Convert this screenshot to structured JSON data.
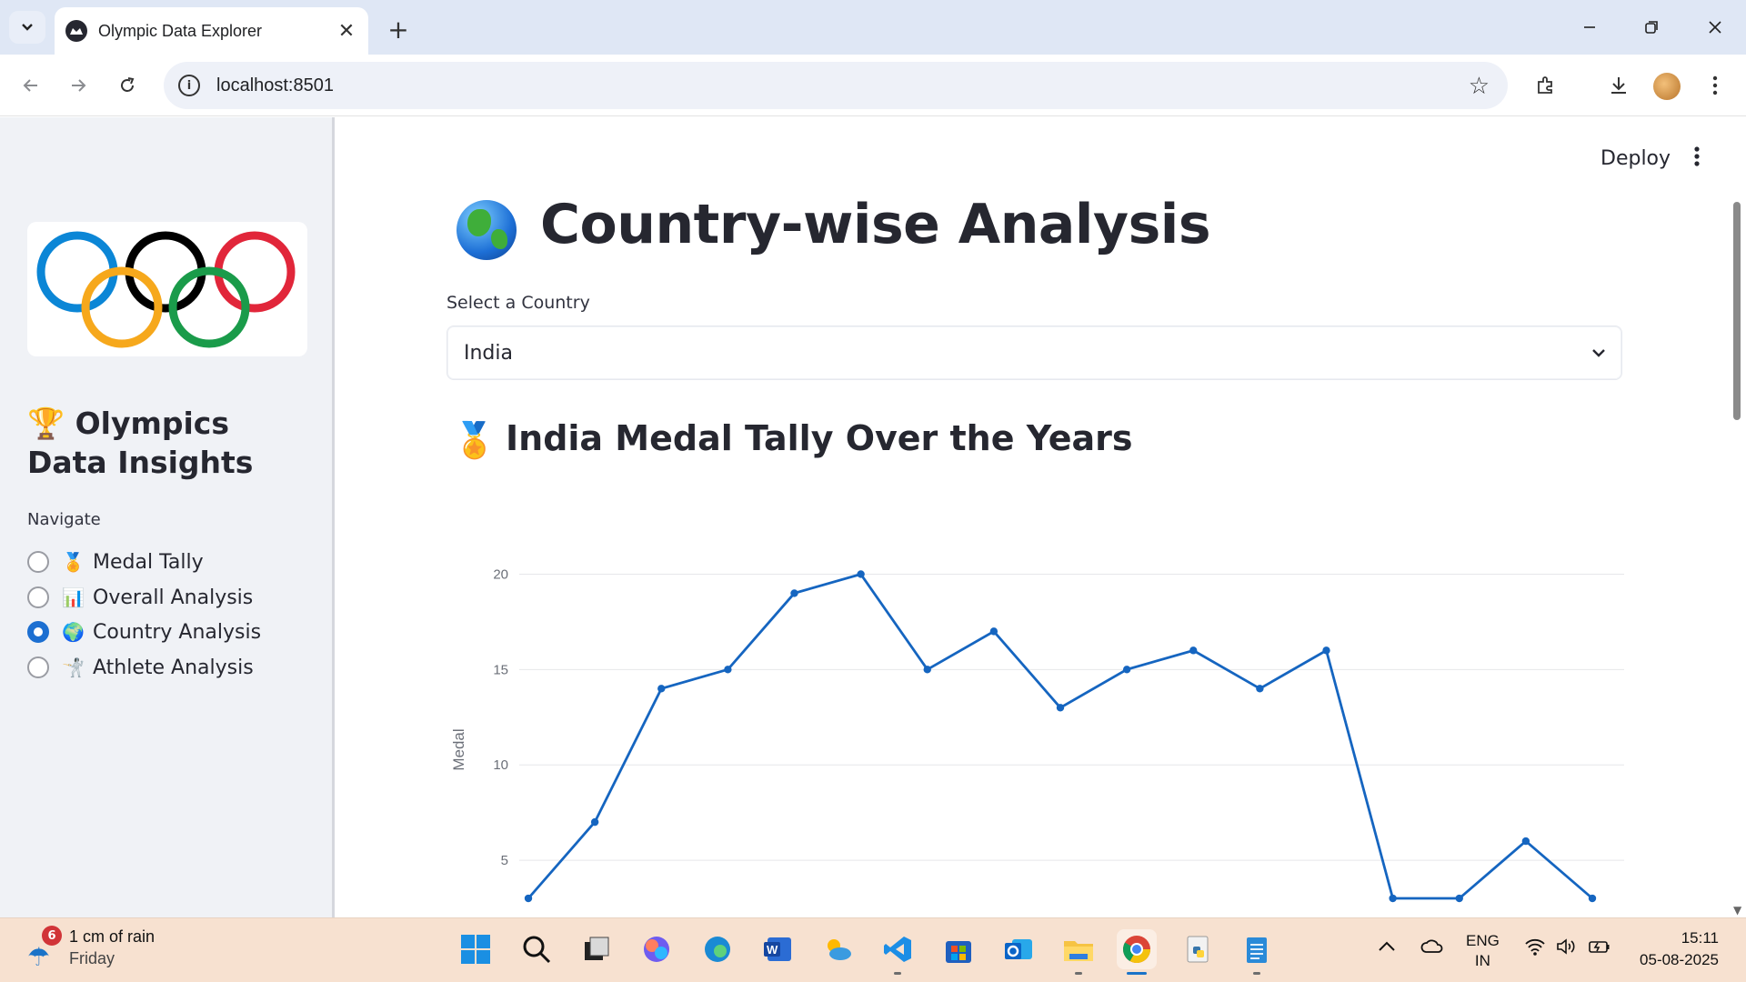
{
  "browser": {
    "tab_title": "Olympic Data Explorer",
    "url": "localhost:8501"
  },
  "sidebar": {
    "title": "Olympics Data Insights",
    "title_emoji": "🏆",
    "nav_label": "Navigate",
    "items": [
      {
        "emoji": "🏅",
        "label": "Medal Tally",
        "selected": false
      },
      {
        "emoji": "📊",
        "label": "Overall Analysis",
        "selected": false
      },
      {
        "emoji": "🌍",
        "label": "Country Analysis",
        "selected": true
      },
      {
        "emoji": "🤺",
        "label": "Athlete Analysis",
        "selected": false
      }
    ]
  },
  "header": {
    "deploy_label": "Deploy"
  },
  "main": {
    "title": "Country-wise Analysis",
    "select_label": "Select a Country",
    "selected_country": "India",
    "subheader": "India Medal Tally Over the Years",
    "subheader_emoji": "🏅"
  },
  "chart_data": {
    "type": "line",
    "title": "",
    "xlabel": "",
    "ylabel": "Medal",
    "ylim": [
      2,
      21.5
    ],
    "yticks": [
      5,
      10,
      15,
      20
    ],
    "grid": true,
    "color": "#1565c0",
    "series": [
      {
        "values": [
          3,
          7,
          14,
          15,
          19,
          20,
          15,
          17,
          13,
          15,
          16,
          14,
          16,
          3,
          3,
          6,
          3
        ]
      }
    ]
  },
  "taskbar": {
    "weather_badge": "6",
    "weather_text": "1 cm of rain",
    "weather_day": "Friday",
    "lang_top": "ENG",
    "lang_bottom": "IN",
    "time": "15:11",
    "date": "05-08-2025"
  }
}
